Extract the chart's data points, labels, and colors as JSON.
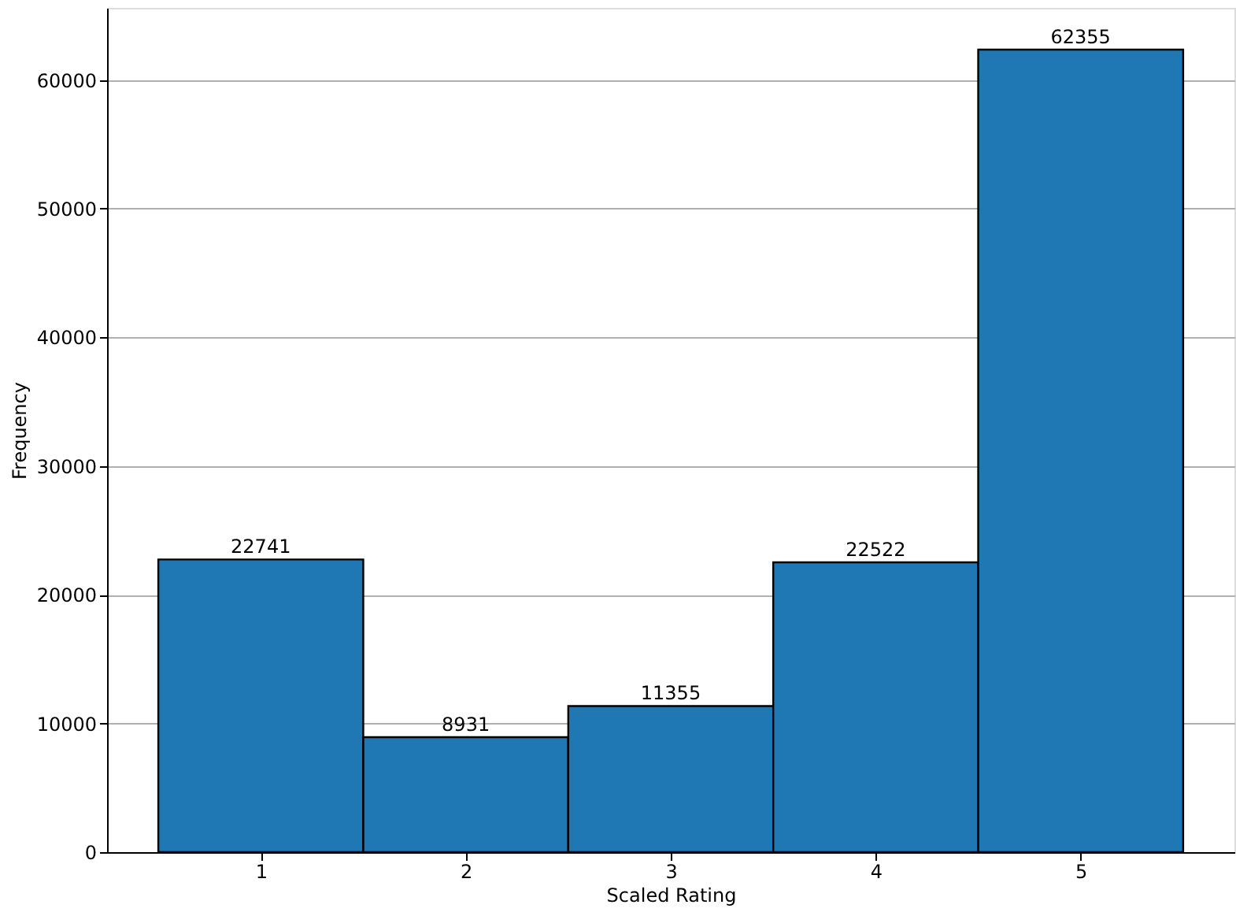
{
  "chart_data": {
    "type": "histogram",
    "xlabel": "Scaled Rating",
    "ylabel": "Frequency",
    "bins": [
      0.5,
      1.5,
      2.5,
      3.5,
      4.5,
      5.5
    ],
    "values": [
      22741,
      8931,
      11355,
      22522,
      62355
    ],
    "color": "#1f77b4",
    "xlim": [
      0.25,
      5.75
    ],
    "xticks": [
      1,
      2,
      3,
      4,
      5
    ],
    "ylim": [
      0,
      65600
    ],
    "yticks": [
      0,
      10000,
      20000,
      30000,
      40000,
      50000,
      60000
    ],
    "grid": "y",
    "data_labels": true
  }
}
